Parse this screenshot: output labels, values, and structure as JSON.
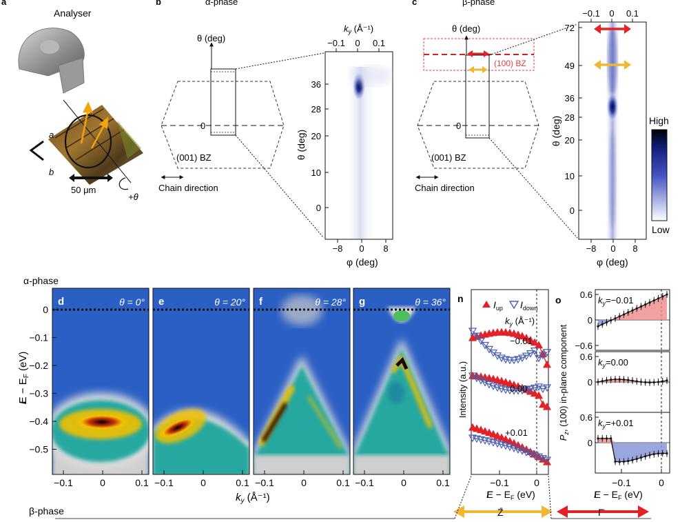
{
  "panel_letters": {
    "a": "a",
    "b": "b",
    "c": "c",
    "d": "d",
    "e": "e",
    "f": "f",
    "g": "g",
    "n": "n",
    "o": "o"
  },
  "panel_a": {
    "title": "Analyser",
    "axis_a": "a",
    "axis_b": "b",
    "scale_bar": "50 μm",
    "rotation": "+θ"
  },
  "panel_b": {
    "title": "α-phase",
    "theta_label": "θ (deg)",
    "zero": "0",
    "bz_label": "(001) BZ",
    "chain_direction": "Chain direction",
    "map": {
      "ky_label": "k",
      "ky_sub": "y",
      "ky_unit": " (Å⁻¹)",
      "ky_ticks": [
        "−0.1",
        "0",
        "0.1"
      ],
      "theta_ticks": [
        "36",
        "28",
        "20",
        "10",
        "0"
      ],
      "phi_ticks": [
        "−8",
        "0",
        "8"
      ],
      "theta_axis": "θ (deg)",
      "phi_axis": "φ (deg)"
    }
  },
  "panel_c": {
    "title": "β-phase",
    "theta_label": "θ (deg)",
    "zero": "0",
    "bz100_label": "(100) BZ",
    "bz_label": "(001) BZ",
    "chain_direction": "Chain direction",
    "map": {
      "ky_ticks": [
        "−0.1",
        "0",
        "0.1"
      ],
      "theta_ticks": [
        "72",
        "49",
        "36",
        "28",
        "20",
        "10",
        "0"
      ],
      "phi_ticks": [
        "−8",
        "0",
        "8"
      ],
      "theta_axis": "θ (deg)",
      "phi_axis": "φ (deg)"
    },
    "colorbar_high": "High",
    "colorbar_low": "Low"
  },
  "row_alpha_label": "α-phase",
  "row_beta_label": "β-phase",
  "arpes": {
    "y_axis": "E − E",
    "y_sub": "F",
    "y_unit": " (eV)",
    "y_ticks": [
      "0",
      "−0.1",
      "−0.2",
      "−0.3",
      "−0.4",
      "−0.5"
    ],
    "x_axis": "k",
    "x_sub": "y",
    "x_unit": " (Å⁻¹)",
    "x_ticks": [
      "−0.1",
      "0",
      "0.1"
    ],
    "panels": [
      {
        "letter": "d",
        "theta": "θ = 0°"
      },
      {
        "letter": "e",
        "theta": "θ = 20°"
      },
      {
        "letter": "f",
        "theta": "θ = 28°"
      },
      {
        "letter": "g",
        "theta": "θ = 36°"
      }
    ]
  },
  "panel_n": {
    "legend_up": "I",
    "legend_up_sub": "up",
    "legend_down": "I",
    "legend_down_sub": "down",
    "ky_label": "k",
    "ky_sub": "y",
    "ky_unit": " (Å⁻¹)",
    "curve_labels": [
      "−0.01",
      "0.00",
      "+0.01"
    ],
    "y_axis": "Intensity (a.u.)",
    "x_axis": "E − E",
    "x_sub": "F",
    "x_unit": " (eV)",
    "x_ticks": [
      "−0.1",
      "0"
    ],
    "bottom_label": "Z̄"
  },
  "panel_o": {
    "sub_labels": [
      "k",
      "k",
      "k"
    ],
    "sub_subs": [
      "y",
      "y",
      "y"
    ],
    "sub_values": [
      "=−0.01",
      "=0.00",
      "=+0.01"
    ],
    "y_ticks": [
      "0.6",
      "0",
      "−0.6"
    ],
    "y_axis": "P",
    "y_sub": "z",
    "y_rest": ", (100) in-plane component",
    "x_axis": "E − E",
    "x_sub": "F",
    "x_unit": " (eV)",
    "x_ticks": [
      "−0.1",
      "0"
    ],
    "bottom_label": "Γ̄"
  },
  "colors": {
    "red": "#e32227",
    "orange": "#f2b632",
    "navy": "#1a2a7a",
    "dash_red": "#e34040"
  }
}
